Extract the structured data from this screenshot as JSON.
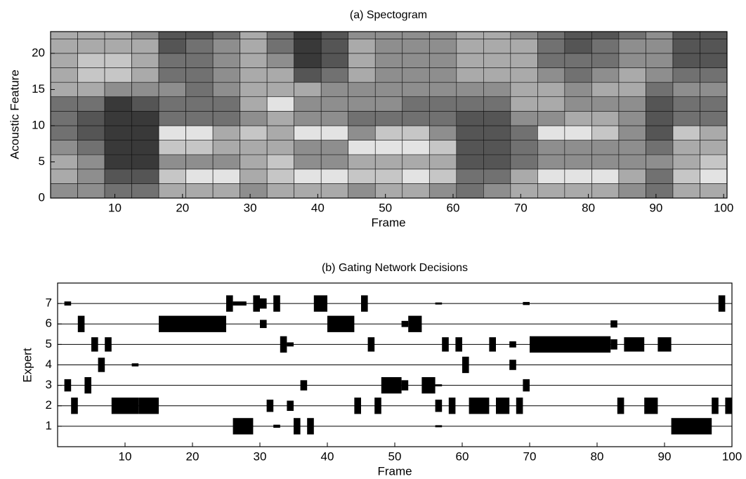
{
  "chart_data": [
    {
      "type": "heatmap",
      "title": "(a) Spectogram",
      "xlabel": "Frame",
      "ylabel": "Acoustic Feature",
      "xbins": [
        0.5,
        4.5,
        8.5,
        12.5,
        16.5,
        20.5,
        24.5,
        28.5,
        32.5,
        36.5,
        40.5,
        44.5,
        48.5,
        52.5,
        56.5,
        60.5,
        64.5,
        68.5,
        72.5,
        76.5,
        80.5,
        84.5,
        88.5,
        92.5,
        96.5,
        100.5
      ],
      "ybins": [
        0,
        2,
        4,
        6,
        8,
        10,
        12,
        14,
        16,
        18,
        20,
        22,
        23
      ],
      "values": [
        [
          5,
          5,
          4,
          4,
          6,
          6,
          6,
          5,
          6,
          6,
          6,
          5,
          6,
          6,
          5,
          4,
          5,
          6,
          6,
          6,
          6,
          5,
          4,
          6,
          6
        ],
        [
          6,
          5,
          3,
          3,
          7,
          8,
          8,
          6,
          7,
          8,
          8,
          7,
          7,
          8,
          7,
          4,
          4,
          6,
          8,
          8,
          8,
          6,
          4,
          7,
          8
        ],
        [
          6,
          5,
          2,
          2,
          5,
          5,
          5,
          6,
          7,
          5,
          5,
          6,
          6,
          6,
          6,
          3,
          3,
          4,
          5,
          5,
          5,
          5,
          5,
          6,
          7
        ],
        [
          5,
          4,
          2,
          2,
          7,
          7,
          6,
          6,
          6,
          5,
          5,
          8,
          8,
          8,
          7,
          3,
          3,
          4,
          5,
          5,
          5,
          5,
          4,
          6,
          6
        ],
        [
          4,
          3,
          2,
          2,
          8,
          8,
          6,
          7,
          6,
          8,
          8,
          5,
          7,
          7,
          5,
          3,
          3,
          4,
          8,
          8,
          7,
          5,
          3,
          7,
          6
        ],
        [
          4,
          3,
          2,
          2,
          4,
          4,
          4,
          5,
          6,
          5,
          5,
          4,
          4,
          4,
          4,
          3,
          3,
          5,
          5,
          6,
          6,
          5,
          3,
          4,
          4
        ],
        [
          4,
          4,
          2,
          3,
          4,
          4,
          4,
          6,
          8,
          5,
          5,
          5,
          5,
          4,
          4,
          4,
          4,
          6,
          6,
          5,
          5,
          5,
          3,
          4,
          4
        ],
        [
          6,
          6,
          5,
          5,
          5,
          4,
          5,
          6,
          6,
          6,
          5,
          5,
          5,
          5,
          5,
          5,
          5,
          6,
          6,
          5,
          6,
          6,
          4,
          5,
          5
        ],
        [
          6,
          7,
          7,
          6,
          4,
          4,
          5,
          6,
          6,
          3,
          4,
          6,
          5,
          5,
          5,
          6,
          6,
          6,
          5,
          4,
          5,
          6,
          5,
          4,
          4
        ],
        [
          6,
          7,
          7,
          6,
          4,
          4,
          5,
          6,
          5,
          2,
          3,
          6,
          5,
          5,
          5,
          6,
          6,
          6,
          4,
          4,
          4,
          5,
          5,
          3,
          3
        ],
        [
          6,
          6,
          6,
          6,
          3,
          4,
          5,
          6,
          4,
          2,
          3,
          6,
          5,
          5,
          5,
          6,
          6,
          6,
          4,
          3,
          4,
          5,
          5,
          3,
          3
        ],
        [
          6,
          6,
          6,
          5,
          3,
          3,
          4,
          6,
          4,
          2,
          3,
          5,
          5,
          5,
          5,
          6,
          6,
          5,
          4,
          3,
          3,
          4,
          5,
          3,
          3
        ]
      ],
      "zlim": [
        0,
        9
      ],
      "xlim": [
        0.5,
        100.5
      ],
      "ylim": [
        0,
        23
      ],
      "xticks": [
        10,
        20,
        30,
        40,
        50,
        60,
        70,
        80,
        90,
        100
      ],
      "yticks": [
        0,
        5,
        10,
        15,
        20
      ]
    },
    {
      "type": "blocks",
      "title": "(b) Gating Network Decisions",
      "xlabel": "Frame",
      "ylabel": "Expert",
      "xlim": [
        0,
        100
      ],
      "ylim": [
        0,
        8
      ],
      "xticks": [
        10,
        20,
        30,
        40,
        50,
        60,
        70,
        80,
        90,
        100
      ],
      "yticks": [
        1,
        2,
        3,
        4,
        5,
        6,
        7
      ],
      "grid": true,
      "color": "#000000",
      "blocks": [
        {
          "expert": 7,
          "start": 1,
          "end": 2,
          "height": 0.2
        },
        {
          "expert": 7,
          "start": 25,
          "end": 26,
          "height": 0.8
        },
        {
          "expert": 7,
          "start": 26,
          "end": 28,
          "height": 0.2
        },
        {
          "expert": 7,
          "start": 29,
          "end": 30,
          "height": 0.8
        },
        {
          "expert": 7,
          "start": 30,
          "end": 31,
          "height": 0.5
        },
        {
          "expert": 7,
          "start": 32,
          "end": 33,
          "height": 0.8
        },
        {
          "expert": 7,
          "start": 38,
          "end": 40,
          "height": 0.8
        },
        {
          "expert": 7,
          "start": 45,
          "end": 46,
          "height": 0.8
        },
        {
          "expert": 7,
          "start": 56,
          "end": 57,
          "height": 0.1
        },
        {
          "expert": 7,
          "start": 69,
          "end": 70,
          "height": 0.15
        },
        {
          "expert": 7,
          "start": 98,
          "end": 99,
          "height": 0.8
        },
        {
          "expert": 6,
          "start": 3,
          "end": 4,
          "height": 0.8
        },
        {
          "expert": 6,
          "start": 15,
          "end": 25,
          "height": 0.8
        },
        {
          "expert": 6,
          "start": 30,
          "end": 31,
          "height": 0.4
        },
        {
          "expert": 6,
          "start": 40,
          "end": 44,
          "height": 0.8
        },
        {
          "expert": 6,
          "start": 51,
          "end": 52,
          "height": 0.3
        },
        {
          "expert": 6,
          "start": 52,
          "end": 54,
          "height": 0.8
        },
        {
          "expert": 6,
          "start": 82,
          "end": 83,
          "height": 0.35
        },
        {
          "expert": 5,
          "start": 5,
          "end": 6,
          "height": 0.7
        },
        {
          "expert": 5,
          "start": 7,
          "end": 8,
          "height": 0.7
        },
        {
          "expert": 5,
          "start": 33,
          "end": 34,
          "height": 0.8
        },
        {
          "expert": 5,
          "start": 34,
          "end": 35,
          "height": 0.2
        },
        {
          "expert": 5,
          "start": 46,
          "end": 47,
          "height": 0.7
        },
        {
          "expert": 5,
          "start": 57,
          "end": 58,
          "height": 0.7
        },
        {
          "expert": 5,
          "start": 59,
          "end": 60,
          "height": 0.7
        },
        {
          "expert": 5,
          "start": 64,
          "end": 65,
          "height": 0.7
        },
        {
          "expert": 5,
          "start": 67,
          "end": 68,
          "height": 0.3
        },
        {
          "expert": 5,
          "start": 70,
          "end": 82,
          "height": 0.8
        },
        {
          "expert": 5,
          "start": 82,
          "end": 83,
          "height": 0.5
        },
        {
          "expert": 5,
          "start": 84,
          "end": 87,
          "height": 0.7
        },
        {
          "expert": 5,
          "start": 89,
          "end": 91,
          "height": 0.7
        },
        {
          "expert": 4,
          "start": 6,
          "end": 7,
          "height": 0.7
        },
        {
          "expert": 4,
          "start": 11,
          "end": 12,
          "height": 0.15
        },
        {
          "expert": 4,
          "start": 60,
          "end": 61,
          "height": 0.8
        },
        {
          "expert": 4,
          "start": 67,
          "end": 68,
          "height": 0.5
        },
        {
          "expert": 3,
          "start": 1,
          "end": 2,
          "height": 0.6
        },
        {
          "expert": 3,
          "start": 4,
          "end": 5,
          "height": 0.8
        },
        {
          "expert": 3,
          "start": 36,
          "end": 37,
          "height": 0.5
        },
        {
          "expert": 3,
          "start": 48,
          "end": 51,
          "height": 0.8
        },
        {
          "expert": 3,
          "start": 51,
          "end": 52,
          "height": 0.5
        },
        {
          "expert": 3,
          "start": 54,
          "end": 56,
          "height": 0.8
        },
        {
          "expert": 3,
          "start": 56,
          "end": 57,
          "height": 0.1
        },
        {
          "expert": 3,
          "start": 69,
          "end": 70,
          "height": 0.6
        },
        {
          "expert": 2,
          "start": 2,
          "end": 3,
          "height": 0.8
        },
        {
          "expert": 2,
          "start": 8,
          "end": 12,
          "height": 0.8
        },
        {
          "expert": 2,
          "start": 12,
          "end": 15,
          "height": 0.8
        },
        {
          "expert": 2,
          "start": 31,
          "end": 32,
          "height": 0.6
        },
        {
          "expert": 2,
          "start": 34,
          "end": 35,
          "height": 0.5
        },
        {
          "expert": 2,
          "start": 44,
          "end": 45,
          "height": 0.8
        },
        {
          "expert": 2,
          "start": 47,
          "end": 48,
          "height": 0.8
        },
        {
          "expert": 2,
          "start": 56,
          "end": 57,
          "height": 0.6
        },
        {
          "expert": 2,
          "start": 58,
          "end": 59,
          "height": 0.8
        },
        {
          "expert": 2,
          "start": 61,
          "end": 64,
          "height": 0.8
        },
        {
          "expert": 2,
          "start": 65,
          "end": 67,
          "height": 0.8
        },
        {
          "expert": 2,
          "start": 68,
          "end": 69,
          "height": 0.8
        },
        {
          "expert": 2,
          "start": 83,
          "end": 84,
          "height": 0.8
        },
        {
          "expert": 2,
          "start": 87,
          "end": 89,
          "height": 0.8
        },
        {
          "expert": 2,
          "start": 97,
          "end": 98,
          "height": 0.8
        },
        {
          "expert": 2,
          "start": 99,
          "end": 100,
          "height": 0.8
        },
        {
          "expert": 1,
          "start": 26,
          "end": 29,
          "height": 0.8
        },
        {
          "expert": 1,
          "start": 32,
          "end": 33,
          "height": 0.15
        },
        {
          "expert": 1,
          "start": 35,
          "end": 36,
          "height": 0.8
        },
        {
          "expert": 1,
          "start": 37,
          "end": 38,
          "height": 0.8
        },
        {
          "expert": 1,
          "start": 56,
          "end": 57,
          "height": 0.1
        },
        {
          "expert": 1,
          "start": 91,
          "end": 97,
          "height": 0.8
        }
      ]
    }
  ]
}
